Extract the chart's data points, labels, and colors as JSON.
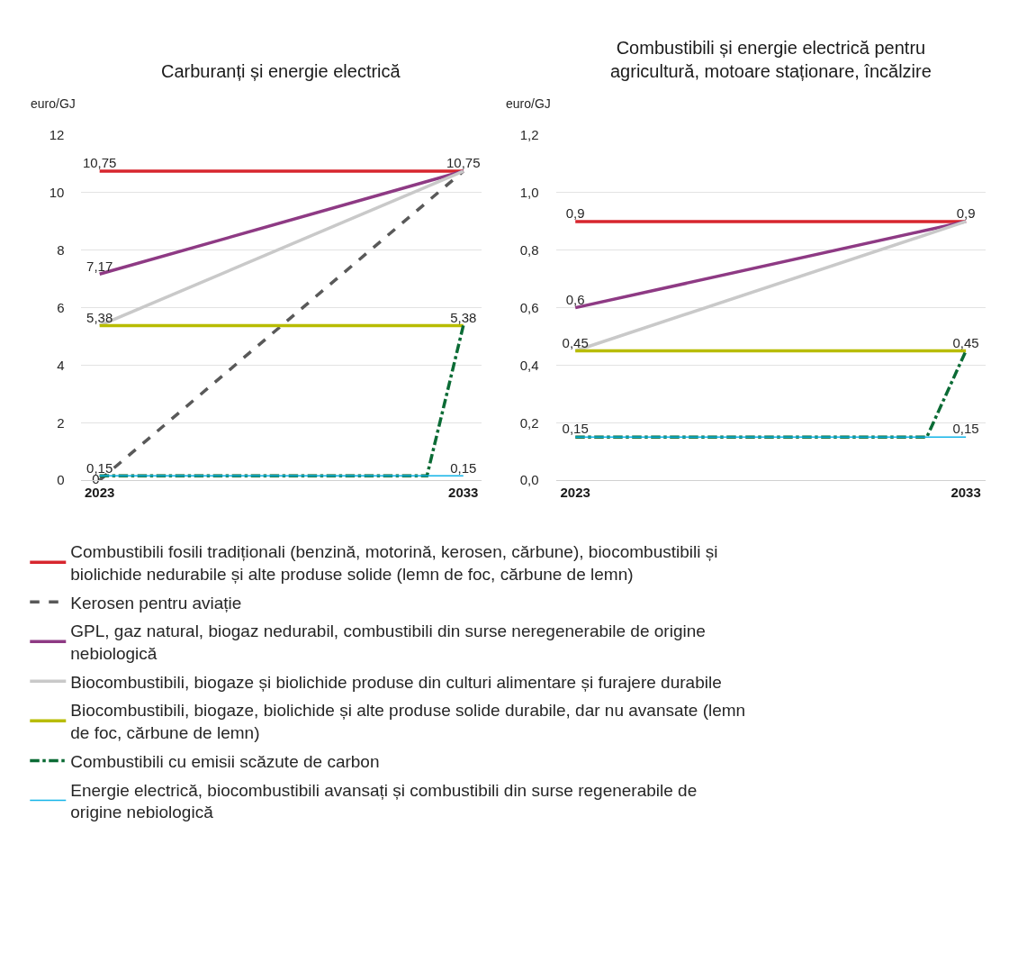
{
  "chart_data": [
    {
      "type": "line",
      "title": "Carburanți și energie electrică",
      "ylabel": "euro/GJ",
      "categories": [
        "2023",
        null,
        null,
        null,
        null,
        null,
        null,
        null,
        null,
        null,
        "2033"
      ],
      "ylim": [
        0,
        12
      ],
      "yticks": [
        0,
        2,
        4,
        6,
        8,
        10,
        12
      ],
      "grid": "y",
      "legend": "bottom",
      "marker": "none",
      "series": [
        {
          "name": "Combustibili fosili tradiționali (benzină, motorină, kerosen, cărbune), biocombustibili și biolichide nedurabile și alte produse solide (lemn de foc, cărbune de lemn)",
          "color": "#d7262e",
          "line_style": "solid",
          "values": [
            10.75,
            null,
            null,
            null,
            null,
            null,
            null,
            null,
            null,
            null,
            10.75
          ],
          "value_labels": [
            "10,75",
            null,
            null,
            null,
            null,
            null,
            null,
            null,
            null,
            null,
            "10,75"
          ]
        },
        {
          "name": "Kerosen pentru aviație",
          "color": "#595959",
          "line_style": "dashed",
          "values": [
            0,
            null,
            null,
            null,
            null,
            null,
            null,
            null,
            null,
            null,
            10.75
          ],
          "value_labels": [
            "0",
            null,
            null,
            null,
            null,
            null,
            null,
            null,
            null,
            null,
            null
          ]
        },
        {
          "name": "GPL, gaz natural, biogaz nedurabil, combustibili din surse neregenerabile de origine nebiologică",
          "color": "#8e3a84",
          "line_style": "solid",
          "values": [
            7.17,
            null,
            null,
            null,
            null,
            null,
            null,
            null,
            null,
            null,
            10.75
          ],
          "value_labels": [
            "7,17",
            null,
            null,
            null,
            null,
            null,
            null,
            null,
            null,
            null,
            null
          ]
        },
        {
          "name": "Biocombustibili, biogaze și biolichide produse din culturi alimentare și furajere durabile",
          "color": "#c9c9c9",
          "line_style": "solid",
          "values": [
            5.38,
            null,
            null,
            null,
            null,
            null,
            null,
            null,
            null,
            null,
            10.75
          ]
        },
        {
          "name": "Biocombustibili, biogaze, biolichide și alte produse solide durabile, dar nu avansate (lemn de foc, cărbune de lemn)",
          "color": "#b8bc00",
          "line_style": "solid",
          "values": [
            5.38,
            null,
            null,
            null,
            null,
            null,
            null,
            null,
            null,
            null,
            5.38
          ],
          "value_labels": [
            "5,38",
            null,
            null,
            null,
            null,
            null,
            null,
            null,
            null,
            null,
            "5,38"
          ]
        },
        {
          "name": "Combustibili cu emisii scăzute de carbon",
          "color": "#0b6b35",
          "line_style": "dashdot",
          "values": [
            0.15,
            0.15,
            0.15,
            0.15,
            0.15,
            0.15,
            0.15,
            0.15,
            0.15,
            0.15,
            5.38
          ]
        },
        {
          "name": "Energie electrică, biocombustibili avansați și combustibili din surse regenerabile de origine nebiologică",
          "color": "#12b4e8",
          "line_style": "solid",
          "values": [
            0.15,
            null,
            null,
            null,
            null,
            null,
            null,
            null,
            null,
            null,
            0.15
          ],
          "value_labels": [
            "0,15",
            null,
            null,
            null,
            null,
            null,
            null,
            null,
            null,
            null,
            "0,15"
          ]
        }
      ]
    },
    {
      "type": "line",
      "title": "Combustibili și energie electrică pentru agricultură, motoare staționare, încălzire",
      "ylabel": "euro/GJ",
      "categories": [
        "2023",
        null,
        null,
        null,
        null,
        null,
        null,
        null,
        null,
        null,
        "2033"
      ],
      "ylim": [
        0,
        1.2
      ],
      "yticks": [
        {
          "value": 0,
          "label": "0,0"
        },
        {
          "value": 0.2,
          "label": "0,2"
        },
        {
          "value": 0.4,
          "label": "0,4"
        },
        {
          "value": 0.6,
          "label": "0,6"
        },
        {
          "value": 0.8,
          "label": "0,8"
        },
        {
          "value": 1,
          "label": "1,0"
        },
        {
          "value": 1.2,
          "label": "1,2"
        }
      ],
      "grid": "y",
      "legend": "bottom",
      "marker": "none",
      "series": [
        {
          "name": "Combustibili fosili tradiționali (benzină, motorină, kerosen, cărbune), biocombustibili și biolichide nedurabile și alte produse solide (lemn de foc, cărbune de lemn)",
          "color": "#d7262e",
          "line_style": "solid",
          "values": [
            0.9,
            null,
            null,
            null,
            null,
            null,
            null,
            null,
            null,
            null,
            0.9
          ],
          "value_labels": [
            "0,9",
            null,
            null,
            null,
            null,
            null,
            null,
            null,
            null,
            null,
            "0,9"
          ]
        },
        {
          "name": "GPL, gaz natural, biogaz nedurabil, combustibili din surse neregenerabile de origine nebiologică",
          "color": "#8e3a84",
          "line_style": "solid",
          "values": [
            0.6,
            null,
            null,
            null,
            null,
            null,
            null,
            null,
            null,
            null,
            0.9
          ],
          "value_labels": [
            "0,6",
            null,
            null,
            null,
            null,
            null,
            null,
            null,
            null,
            null,
            null
          ]
        },
        {
          "name": "Biocombustibili, biogaze și biolichide produse din culturi alimentare și furajere durabile",
          "color": "#c9c9c9",
          "line_style": "solid",
          "values": [
            0.45,
            null,
            null,
            null,
            null,
            null,
            null,
            null,
            null,
            null,
            0.9
          ]
        },
        {
          "name": "Biocombustibili, biogaze, biolichide și alte produse solide durabile, dar nu avansate (lemn de foc, cărbune de lemn)",
          "color": "#b8bc00",
          "line_style": "solid",
          "values": [
            0.45,
            null,
            null,
            null,
            null,
            null,
            null,
            null,
            null,
            null,
            0.45
          ],
          "value_labels": [
            "0,45",
            null,
            null,
            null,
            null,
            null,
            null,
            null,
            null,
            null,
            "0,45"
          ]
        },
        {
          "name": "Combustibili cu emisii scăzute de carbon",
          "color": "#0b6b35",
          "line_style": "dashdot",
          "values": [
            0.15,
            0.15,
            0.15,
            0.15,
            0.15,
            0.15,
            0.15,
            0.15,
            0.15,
            0.15,
            0.45
          ]
        },
        {
          "name": "Energie electrică, biocombustibili avansați și combustibili din surse regenerabile de origine nebiologică",
          "color": "#12b4e8",
          "line_style": "solid",
          "values": [
            0.15,
            null,
            null,
            null,
            null,
            null,
            null,
            null,
            null,
            null,
            0.15
          ],
          "value_labels": [
            "0,15",
            null,
            null,
            null,
            null,
            null,
            null,
            null,
            null,
            null,
            "0,15"
          ]
        }
      ]
    }
  ]
}
